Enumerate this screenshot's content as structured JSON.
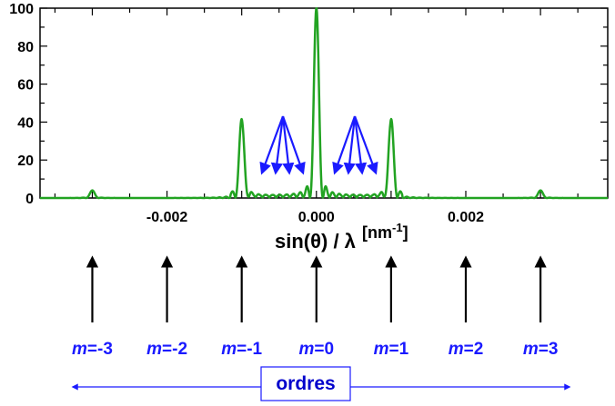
{
  "chart_data": {
    "type": "line",
    "x_label": "sin(θ) / λ",
    "x_unit_base": "[nm",
    "x_unit_exp": "-1",
    "x_unit_close": "]",
    "xlim": [
      -0.0037,
      0.0039
    ],
    "ylim": [
      0,
      100
    ],
    "x_ticks": [
      -0.002,
      0.0,
      0.002
    ],
    "x_tick_labels": [
      "-0.002",
      "0.000",
      "0.002"
    ],
    "y_ticks": [
      0,
      20,
      40,
      60,
      80,
      100
    ],
    "y_tick_labels": [
      "0",
      "20",
      "40",
      "60",
      "80",
      "100"
    ],
    "grid": false,
    "series": [
      {
        "color": "#22a322",
        "peaks": [
          {
            "x": -0.003,
            "y": 4
          },
          {
            "x": -0.001,
            "y": 41
          },
          {
            "x": 0.0,
            "y": 100
          },
          {
            "x": 0.001,
            "y": 41
          },
          {
            "x": 0.003,
            "y": 4
          }
        ]
      }
    ],
    "annotation_arrow_color": "#1a1aff"
  },
  "orders": {
    "items": [
      {
        "m": "m",
        "value": "=-3",
        "x": -0.003
      },
      {
        "m": "m",
        "value": "=-2",
        "x": -0.002
      },
      {
        "m": "m",
        "value": "=-1",
        "x": -0.001
      },
      {
        "m": "m",
        "value": "=0",
        "x": 0.0
      },
      {
        "m": "m",
        "value": "=1",
        "x": 0.001
      },
      {
        "m": "m",
        "value": "=2",
        "x": 0.002
      },
      {
        "m": "m",
        "value": "=3",
        "x": 0.003
      }
    ],
    "label": "ordres",
    "color": "#1a1aff"
  }
}
